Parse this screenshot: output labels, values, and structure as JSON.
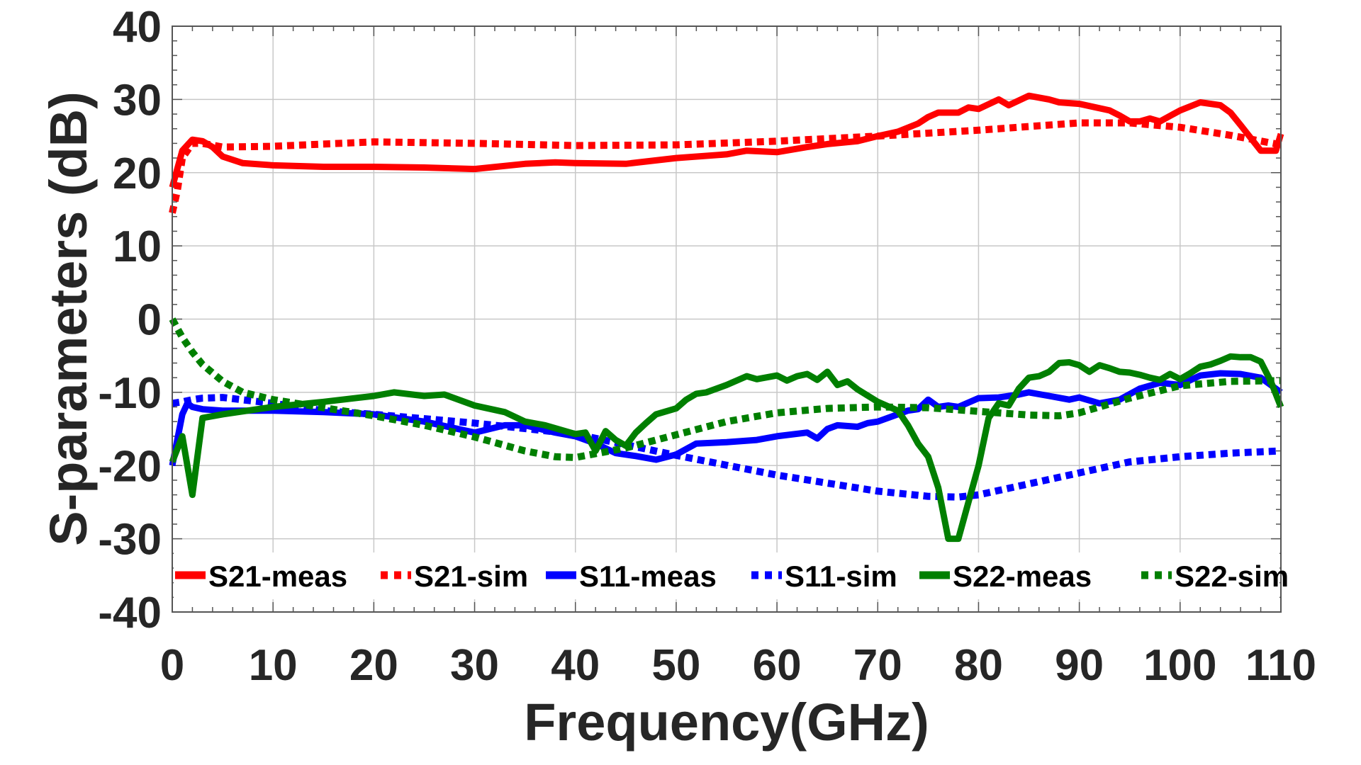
{
  "chart_data": {
    "type": "line",
    "title": "",
    "xlabel": "Frequency(GHz)",
    "ylabel": "S-parameters (dB)",
    "xlim": [
      0,
      110
    ],
    "ylim": [
      -40,
      40
    ],
    "grid": true,
    "legend_position": "bottom-inside",
    "x_ticks": [
      0,
      10,
      20,
      30,
      40,
      50,
      60,
      70,
      80,
      90,
      100,
      110
    ],
    "x_tick_labels": [
      "0",
      "10",
      "20",
      "30",
      "40",
      "50",
      "60",
      "70",
      "80",
      "90",
      "100",
      "110"
    ],
    "y_ticks": [
      -40,
      -30,
      -20,
      -10,
      0,
      10,
      20,
      30,
      40
    ],
    "y_tick_labels": [
      "-40",
      "-30",
      "-20",
      "-10",
      "0",
      "10",
      "20",
      "30",
      "40"
    ],
    "series": [
      {
        "name": "S21-meas",
        "color": "#ff0000",
        "style": "solid",
        "x": [
          0,
          1,
          2,
          3,
          4,
          5,
          7,
          10,
          15,
          20,
          25,
          30,
          35,
          38,
          40,
          45,
          50,
          55,
          57,
          60,
          63,
          65,
          68,
          70,
          72,
          74,
          75,
          76,
          78,
          79,
          80,
          82,
          83,
          85,
          87,
          88,
          90,
          91,
          93,
          94,
          95,
          96,
          97,
          98,
          100,
          102,
          104,
          105,
          106,
          108,
          109.5,
          110
        ],
        "y": [
          18,
          23,
          24.5,
          24.3,
          23.5,
          22.2,
          21.3,
          21,
          20.8,
          20.8,
          20.7,
          20.5,
          21.2,
          21.4,
          21.3,
          21.2,
          22,
          22.5,
          23,
          22.8,
          23.5,
          23.9,
          24.3,
          25,
          25.6,
          26.7,
          27.6,
          28.2,
          28.2,
          28.9,
          28.7,
          30,
          29.2,
          30.5,
          30,
          29.6,
          29.4,
          29.1,
          28.5,
          27.8,
          27,
          27,
          27.4,
          27,
          28.5,
          29.6,
          29.2,
          28.2,
          26.5,
          23,
          23,
          25.3
        ]
      },
      {
        "name": "S21-sim",
        "color": "#ff0000",
        "style": "dotted",
        "x": [
          0,
          0.5,
          1,
          2,
          3,
          5,
          10,
          20,
          30,
          40,
          50,
          60,
          70,
          80,
          85,
          90,
          95,
          100,
          105,
          110
        ],
        "y": [
          14.5,
          17.5,
          22,
          24,
          24,
          23.5,
          23.6,
          24.2,
          24,
          23.7,
          23.8,
          24.3,
          25,
          25.8,
          26.3,
          26.8,
          26.8,
          26.2,
          25.1,
          23.8
        ]
      },
      {
        "name": "S11-meas",
        "color": "#0000ff",
        "style": "solid",
        "x": [
          0,
          1,
          1.5,
          2,
          3,
          5,
          10,
          15,
          20,
          25,
          30,
          33,
          35,
          38,
          40,
          42,
          44,
          46,
          48,
          50,
          52,
          55,
          58,
          60,
          63,
          64,
          65,
          66,
          68,
          69,
          70,
          72,
          73,
          74,
          75,
          76,
          77,
          78,
          80,
          82,
          84,
          85,
          87,
          89,
          90,
          92,
          94,
          96,
          98,
          100,
          102,
          104,
          106,
          108,
          110
        ],
        "y": [
          -20,
          -13,
          -11.5,
          -12,
          -12.3,
          -12.5,
          -12.5,
          -12.7,
          -13,
          -14,
          -15.5,
          -14.5,
          -14.5,
          -15.5,
          -16,
          -17,
          -18.3,
          -18.7,
          -19.2,
          -18.5,
          -17,
          -16.8,
          -16.5,
          -16,
          -15.5,
          -16.3,
          -15,
          -14.5,
          -14.7,
          -14.2,
          -14,
          -13,
          -12.5,
          -12.3,
          -11,
          -12,
          -11.8,
          -12,
          -10.8,
          -10.7,
          -10.3,
          -10,
          -10.5,
          -11,
          -10.7,
          -11.5,
          -11,
          -9.5,
          -8.7,
          -9,
          -7.7,
          -7.4,
          -7.5,
          -8,
          -10
        ]
      },
      {
        "name": "S11-sim",
        "color": "#0000ff",
        "style": "dotted",
        "x": [
          0,
          1,
          2,
          3,
          5,
          10,
          15,
          20,
          30,
          40,
          50,
          60,
          70,
          75,
          78,
          80,
          85,
          90,
          95,
          100,
          105,
          110
        ],
        "y": [
          -11.5,
          -11.3,
          -11,
          -10.8,
          -10.7,
          -11.5,
          -12.5,
          -13,
          -14.2,
          -15.7,
          -18.6,
          -21.3,
          -23.5,
          -24.2,
          -24.3,
          -24,
          -22.5,
          -21,
          -19.5,
          -18.8,
          -18.3,
          -18
        ]
      },
      {
        "name": "S22-meas",
        "color": "#007f00",
        "style": "solid",
        "x": [
          0,
          1,
          2,
          3,
          5,
          10,
          15,
          20,
          22,
          25,
          27,
          30,
          33,
          35,
          37,
          39,
          40,
          41,
          42,
          43,
          44,
          45,
          46,
          47,
          48,
          50,
          51,
          52,
          53,
          55,
          57,
          58,
          60,
          61,
          62,
          63,
          64,
          65,
          66,
          67,
          68,
          70,
          72,
          73,
          74,
          75,
          76,
          77,
          78,
          79,
          80,
          81,
          82,
          83,
          84,
          85,
          86,
          87,
          88,
          89,
          90,
          91,
          92,
          93,
          94,
          95,
          96,
          97,
          98,
          99,
          100,
          101,
          102,
          103,
          104,
          105,
          106,
          107,
          108,
          109,
          110
        ],
        "y": [
          -19.5,
          -16,
          -24,
          -13.5,
          -13,
          -12,
          -11.3,
          -10.5,
          -10,
          -10.5,
          -10.3,
          -11.8,
          -12.7,
          -14,
          -14.5,
          -15.3,
          -15.7,
          -15.5,
          -18,
          -15.3,
          -16.5,
          -17.3,
          -15.5,
          -14.2,
          -13,
          -12.2,
          -11,
          -10.2,
          -10,
          -9,
          -7.8,
          -8.2,
          -7.7,
          -8.4,
          -7.8,
          -7.5,
          -8.3,
          -7.2,
          -9,
          -8.5,
          -9.6,
          -11.3,
          -12.5,
          -14.5,
          -17,
          -18.8,
          -23,
          -30,
          -30,
          -25,
          -20,
          -13.5,
          -11.5,
          -11.8,
          -9.5,
          -8,
          -7.8,
          -7.2,
          -6,
          -5.9,
          -6.3,
          -7.2,
          -6.3,
          -6.7,
          -7.2,
          -7.3,
          -7.6,
          -8,
          -8.3,
          -7.5,
          -8.2,
          -7.4,
          -6.5,
          -6.2,
          -5.7,
          -5.1,
          -5.2,
          -5.2,
          -5.8,
          -8.5,
          -12
        ]
      },
      {
        "name": "S22-sim",
        "color": "#007f00",
        "style": "dotted",
        "x": [
          0,
          1,
          2,
          3,
          5,
          7,
          10,
          15,
          20,
          25,
          30,
          35,
          38,
          40,
          45,
          50,
          55,
          60,
          65,
          70,
          75,
          80,
          85,
          88,
          90,
          95,
          100,
          105,
          110
        ],
        "y": [
          0,
          -2.5,
          -4.5,
          -6.2,
          -8.5,
          -10,
          -11,
          -12.1,
          -13.2,
          -14.5,
          -16.1,
          -18,
          -18.8,
          -18.9,
          -17.6,
          -15.8,
          -14,
          -12.8,
          -12.2,
          -12,
          -12.1,
          -12.6,
          -13.1,
          -13.2,
          -12.8,
          -10.8,
          -9.1,
          -8.5,
          -8.4
        ]
      }
    ]
  }
}
